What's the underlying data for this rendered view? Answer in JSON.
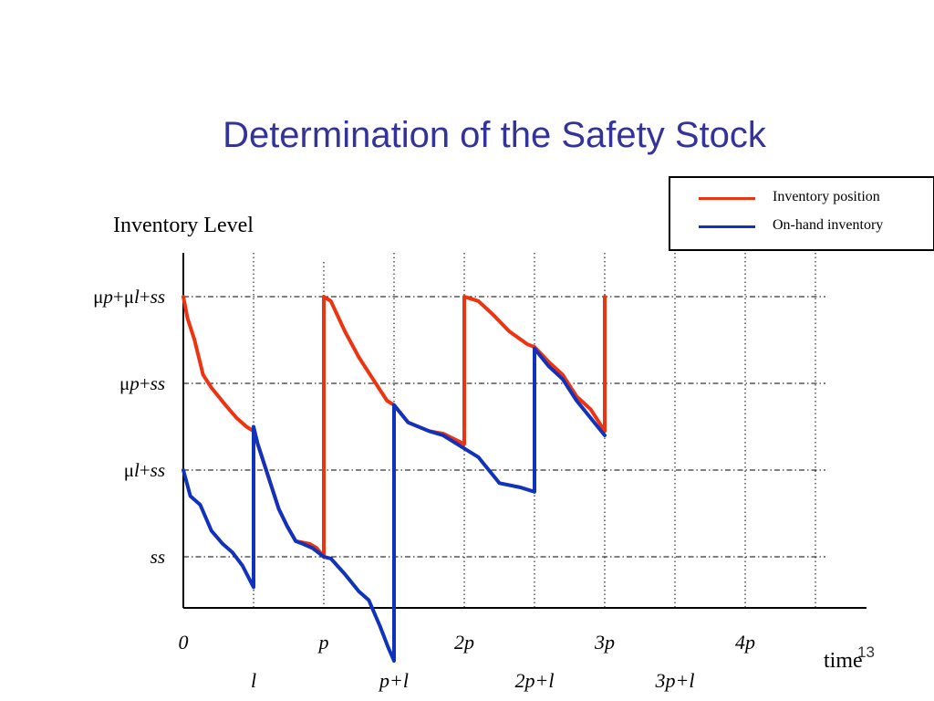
{
  "title": "Determination of the Safety Stock",
  "page_number": "13",
  "colors": {
    "title": "#333399",
    "inventory_position": "#ee3311",
    "on_hand_inventory": "#1133bb",
    "axis": "#000000",
    "grid": "#000000"
  },
  "chart_data": {
    "type": "line",
    "title": "",
    "ylabel": "Inventory Level",
    "xlabel": "time",
    "legend": {
      "placement": "top-right",
      "entries": [
        "Inventory position",
        "On-hand inventory"
      ]
    },
    "y_levels": [
      {
        "label_html": "<tspan>&#956;</tspan><tspan>p</tspan><tspan font-style=\"normal\">+</tspan><tspan>&#956;</tspan><tspan>l</tspan><tspan font-style=\"normal\">+</tspan><tspan>ss</tspan>",
        "label": "μp+μl+ss",
        "value": 4
      },
      {
        "label": "μp+ss",
        "value": 3
      },
      {
        "label": "μl+ss",
        "value": 2
      },
      {
        "label": "ss",
        "value": 1
      }
    ],
    "x_ticks_top": [
      {
        "label": "0",
        "x": 0
      },
      {
        "label": "p",
        "x": 1
      },
      {
        "label": "2p",
        "x": 2
      },
      {
        "label": "3p",
        "x": 3
      },
      {
        "label": "4p",
        "x": 4
      }
    ],
    "x_ticks_bottom": [
      {
        "label": "l",
        "x": 0.5
      },
      {
        "label": "p+l",
        "x": 1.5
      },
      {
        "label": "2p+l",
        "x": 2.5
      },
      {
        "label": "3p+l",
        "x": 3.5
      }
    ],
    "series": [
      {
        "name": "Inventory position",
        "points": [
          [
            0.0,
            4.0
          ],
          [
            0.03,
            3.75
          ],
          [
            0.08,
            3.5
          ],
          [
            0.14,
            3.1
          ],
          [
            0.2,
            2.95
          ],
          [
            0.3,
            2.75
          ],
          [
            0.38,
            2.6
          ],
          [
            0.45,
            2.5
          ],
          [
            0.5,
            2.45
          ],
          [
            0.53,
            2.3
          ],
          [
            0.58,
            2.05
          ],
          [
            0.63,
            1.8
          ],
          [
            0.68,
            1.55
          ],
          [
            0.74,
            1.35
          ],
          [
            0.8,
            1.18
          ],
          [
            0.9,
            1.15
          ],
          [
            0.95,
            1.1
          ],
          [
            1.0,
            1.0
          ],
          [
            1.0,
            4.0
          ],
          [
            1.05,
            3.95
          ],
          [
            1.15,
            3.6
          ],
          [
            1.25,
            3.3
          ],
          [
            1.35,
            3.05
          ],
          [
            1.45,
            2.8
          ],
          [
            1.5,
            2.75
          ],
          [
            1.6,
            2.55
          ],
          [
            1.75,
            2.45
          ],
          [
            1.85,
            2.42
          ],
          [
            2.0,
            2.3
          ],
          [
            2.0,
            4.0
          ],
          [
            2.1,
            3.95
          ],
          [
            2.2,
            3.8
          ],
          [
            2.32,
            3.6
          ],
          [
            2.45,
            3.45
          ],
          [
            2.5,
            3.42
          ],
          [
            2.6,
            3.25
          ],
          [
            2.7,
            3.1
          ],
          [
            2.8,
            2.85
          ],
          [
            2.9,
            2.7
          ],
          [
            3.0,
            2.45
          ],
          [
            3.0,
            4.0
          ]
        ]
      },
      {
        "name": "On-hand inventory",
        "points": [
          [
            0.0,
            2.0
          ],
          [
            0.05,
            1.7
          ],
          [
            0.12,
            1.6
          ],
          [
            0.2,
            1.3
          ],
          [
            0.28,
            1.15
          ],
          [
            0.35,
            1.05
          ],
          [
            0.42,
            0.9
          ],
          [
            0.5,
            0.65
          ],
          [
            0.5,
            2.5
          ],
          [
            0.53,
            2.3
          ],
          [
            0.58,
            2.05
          ],
          [
            0.63,
            1.8
          ],
          [
            0.68,
            1.55
          ],
          [
            0.74,
            1.35
          ],
          [
            0.8,
            1.18
          ],
          [
            0.85,
            1.15
          ],
          [
            0.92,
            1.1
          ],
          [
            1.0,
            1.0
          ],
          [
            1.05,
            0.98
          ],
          [
            1.15,
            0.8
          ],
          [
            1.25,
            0.6
          ],
          [
            1.32,
            0.5
          ],
          [
            1.4,
            0.2
          ],
          [
            1.46,
            -0.05
          ],
          [
            1.5,
            -0.2
          ],
          [
            1.5,
            2.75
          ],
          [
            1.6,
            2.55
          ],
          [
            1.75,
            2.45
          ],
          [
            1.85,
            2.4
          ],
          [
            2.0,
            2.25
          ],
          [
            2.1,
            2.15
          ],
          [
            2.25,
            1.85
          ],
          [
            2.4,
            1.8
          ],
          [
            2.5,
            1.75
          ],
          [
            2.5,
            3.4
          ],
          [
            2.6,
            3.2
          ],
          [
            2.7,
            3.05
          ],
          [
            2.8,
            2.8
          ],
          [
            2.9,
            2.6
          ],
          [
            3.0,
            2.4
          ]
        ]
      }
    ],
    "grid": true
  }
}
